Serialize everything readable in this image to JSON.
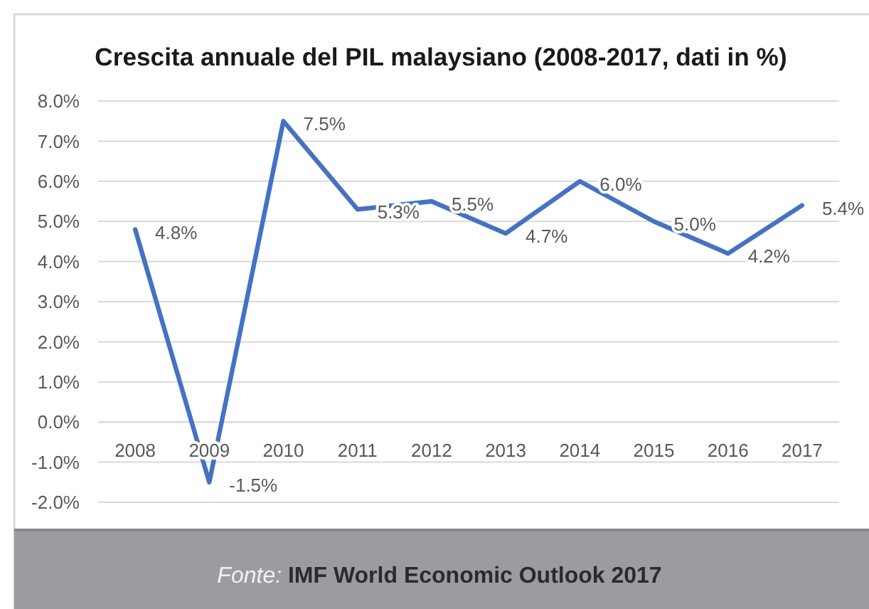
{
  "chart_data": {
    "type": "line",
    "title": "Crescita annuale del PIL malaysiano (2008-2017, dati in %)",
    "categories": [
      "2008",
      "2009",
      "2010",
      "2011",
      "2012",
      "2013",
      "2014",
      "2015",
      "2016",
      "2017"
    ],
    "series": [
      {
        "color": "#4472c4",
        "values": [
          4.8,
          -1.5,
          7.5,
          5.3,
          5.5,
          4.7,
          6.0,
          5.0,
          4.2,
          5.4
        ],
        "value_labels": [
          "4.8%",
          "-1.5%",
          "7.5%",
          "5.3%",
          "5.5%",
          "4.7%",
          "6.0%",
          "5.0%",
          "4.2%",
          "5.4%"
        ]
      }
    ],
    "ylim": [
      -2,
      8
    ],
    "yticks": [
      {
        "value": -2,
        "label": "-2.0%"
      },
      {
        "value": -1,
        "label": "-1.0%"
      },
      {
        "value": 0,
        "label": "0.0%"
      },
      {
        "value": 1,
        "label": "1.0%"
      },
      {
        "value": 2,
        "label": "2.0%"
      },
      {
        "value": 3,
        "label": "3.0%"
      },
      {
        "value": 4,
        "label": "4.0%"
      },
      {
        "value": 5,
        "label": "5.0%"
      },
      {
        "value": 6,
        "label": "6.0%"
      },
      {
        "value": 7,
        "label": "7.0%"
      },
      {
        "value": 8,
        "label": "8.0%"
      }
    ],
    "grid": "y",
    "annotations": [
      "Fonte: IMF World Economic Outlook 2017"
    ]
  }
}
